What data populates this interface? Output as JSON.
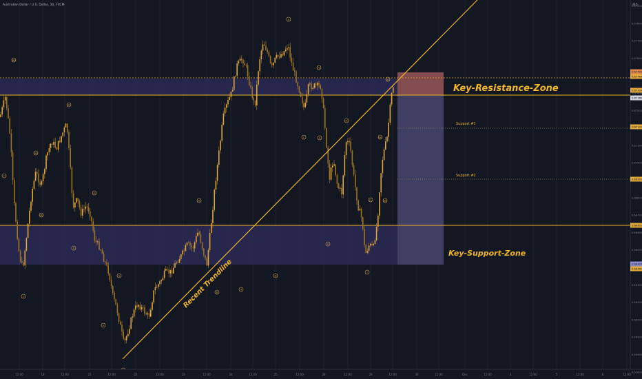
{
  "header": {
    "title": "Australian Dollar / U.S. Dollar, 30, FXCM",
    "currency": "USD"
  },
  "annotations": {
    "resistance_label": "Key-Resistance-Zone",
    "support_label": "Key-Support-Zone",
    "support1_label": "Support #1",
    "support2_label": "Support #2",
    "trendline_label": "Recent Trendline"
  },
  "colors": {
    "background": "#131722",
    "candle": "#e0a83a",
    "line": "#f0b429",
    "zone": "#2b2a55",
    "target_box": "#4d4d7a",
    "stop_box": "#a05a5a",
    "text": "#b2b5be"
  },
  "chart_data": {
    "type": "candlestick",
    "y_axis": {
      "ticks": [
        "0.67900",
        "0.67800",
        "0.67700",
        "0.67600",
        "0.67500",
        "0.67400",
        "0.67300",
        "0.67200",
        "0.67100",
        "0.67000",
        "0.66900",
        "0.66800",
        "0.66700",
        "0.66600",
        "0.66500",
        "0.66400",
        "0.66300",
        "0.66200",
        "0.66100",
        "0.66000",
        "0.65900",
        "0.65800"
      ]
    },
    "x_axis": {
      "ticks": [
        "12:00",
        "18",
        "12:00",
        "21",
        "12:00",
        "22",
        "12:00",
        "23",
        "12:00",
        "24",
        "12:00",
        "25",
        "12:00",
        "28",
        "12:00",
        "29",
        "12:00",
        "30",
        "12:00",
        "Dec",
        "12:00",
        "3",
        "12:00",
        "5",
        "12:00",
        "6",
        "12:00"
      ]
    },
    "price_badges": [
      {
        "value": "0.67509",
        "color": "#e0874f"
      },
      {
        "value": "0.67464",
        "color": "#e0a83a"
      },
      {
        "value": "0.67424",
        "color": "#e0a83a"
      },
      {
        "value": "0.67368",
        "color": "#d1d4dc"
      },
      {
        "value": "0.67222",
        "color": "#e0a83a"
      },
      {
        "value": "0.66953",
        "color": "#e0a83a"
      },
      {
        "value": "0.66659",
        "color": "#e0a83a"
      },
      {
        "value": "0.66421",
        "color": "#8c8cc8"
      },
      {
        "value": "0.66400",
        "color": "#e0a83a"
      }
    ],
    "wave_labels": [
      "wb",
      "(c)",
      "(a)",
      "(b)",
      "i",
      "iii",
      "ii",
      "iv",
      "v",
      "A",
      "B",
      "C",
      "a",
      "c",
      "iv",
      "ii",
      "(c)",
      "(a)",
      "(b)",
      "ii",
      "i",
      "iii",
      "iv",
      "v",
      "ii",
      "iii"
    ],
    "levels": [
      "0.67424",
      "0.66659"
    ]
  }
}
